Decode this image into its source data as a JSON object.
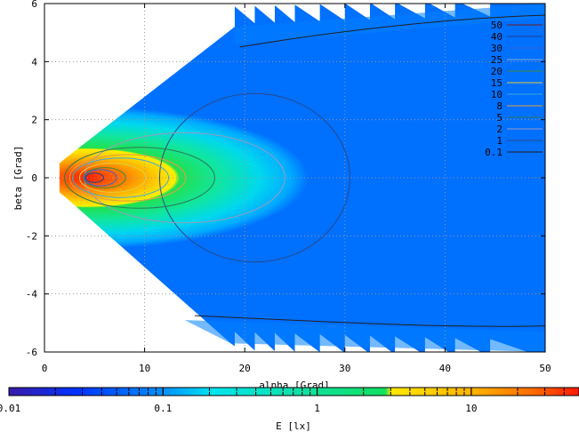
{
  "chart_data": {
    "type": "heatmap",
    "title": "",
    "xlabel": "alpha [Grad]",
    "ylabel": "beta [Grad]",
    "xlim": [
      0,
      50
    ],
    "ylim": [
      6,
      -6
    ],
    "x_ticks": [
      "0",
      "10",
      "20",
      "30",
      "40",
      "50"
    ],
    "y_ticks": [
      "-6",
      "-4",
      "-2",
      "0",
      "2",
      "4",
      "6"
    ],
    "grid": true,
    "colorbar": {
      "label": "E [lx]",
      "scale": "log",
      "range": [
        0.01,
        50
      ],
      "ticks": [
        "0.01",
        "0.1",
        "1",
        "10"
      ],
      "colors": [
        "#3a1aa8",
        "#0033ff",
        "#0090ff",
        "#00e5ee",
        "#11e060",
        "#ffe800",
        "#ffb000",
        "#ff6a00",
        "#ff1800"
      ]
    },
    "legend": {
      "position": "top-right",
      "entries": [
        {
          "label": "50",
          "color": "#7a1c1c"
        },
        {
          "label": "40",
          "color": "#1f3f8f"
        },
        {
          "label": "30",
          "color": "#3a60d8"
        },
        {
          "label": "25",
          "color": "#8aa8c8"
        },
        {
          "label": "20",
          "color": "#3a8a3a"
        },
        {
          "label": "15",
          "color": "#e0d040"
        },
        {
          "label": "10",
          "color": "#3aaae0"
        },
        {
          "label": "8",
          "color": "#e0a040"
        },
        {
          "label": "5",
          "color": "#2a7a5a"
        },
        {
          "label": "2",
          "color": "#9a9ac0"
        },
        {
          "label": "1",
          "color": "#2a4a8a"
        },
        {
          "label": "0.1",
          "color": "#202020"
        }
      ]
    },
    "contours": [
      {
        "level": "0.1",
        "shape": "outer-bands"
      },
      {
        "level": "1",
        "center": [
          21,
          0
        ],
        "rx": 9.5,
        "ry": 2.9
      },
      {
        "level": "2",
        "center": [
          14,
          0
        ],
        "rx": 10,
        "ry": 1.55
      },
      {
        "level": "5",
        "center": [
          9.5,
          0
        ],
        "rx": 7.5,
        "ry": 1.05
      },
      {
        "level": "8",
        "center": [
          8.3,
          0
        ],
        "rx": 5.8,
        "ry": 0.8
      },
      {
        "level": "10",
        "center": [
          7.6,
          0
        ],
        "rx": 4.8,
        "ry": 0.68
      },
      {
        "level": "15",
        "center": [
          6.8,
          0
        ],
        "rx": 3.3,
        "ry": 0.5
      },
      {
        "level": "20",
        "center": [
          6.0,
          0
        ],
        "rx": 2.1,
        "ry": 0.35
      },
      {
        "level": "30",
        "center": [
          5.6,
          0
        ],
        "rx": 1.6,
        "ry": 0.28
      },
      {
        "level": "40",
        "center": [
          5.0,
          0
        ],
        "rx": 0.9,
        "ry": 0.16
      }
    ]
  }
}
